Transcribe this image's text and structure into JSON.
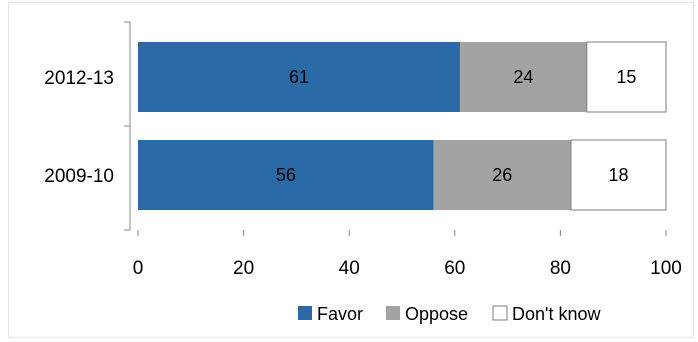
{
  "chart_data": {
    "type": "bar",
    "orientation": "horizontal",
    "stacked": true,
    "categories": [
      "2012-13",
      "2009-10"
    ],
    "series": [
      {
        "name": "Favor",
        "values": [
          61,
          56
        ],
        "color": "#2a6aa6"
      },
      {
        "name": "Oppose",
        "values": [
          24,
          26
        ],
        "color": "#a3a3a3"
      },
      {
        "name": "Don't know",
        "values": [
          15,
          18
        ],
        "color": "#ffffff"
      }
    ],
    "xlim": [
      0,
      100
    ],
    "xticks": [
      "0",
      "20",
      "40",
      "60",
      "80",
      "100"
    ],
    "grid": false,
    "legend_position": "bottom",
    "data_labels": true
  }
}
